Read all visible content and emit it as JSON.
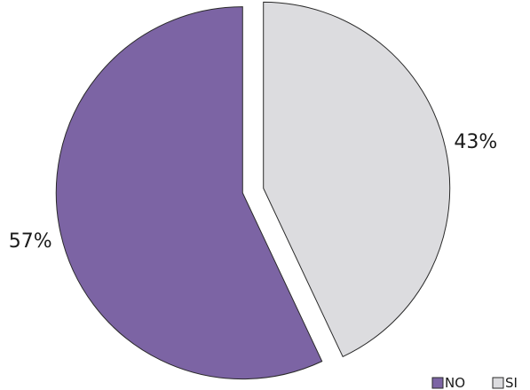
{
  "chart_data": {
    "type": "pie",
    "categories": [
      "NO",
      "SI"
    ],
    "values": [
      57,
      43
    ],
    "value_labels": [
      "57%",
      "43%"
    ],
    "colors": [
      "#7c64a4",
      "#dcdcdf"
    ],
    "legend_position": "bottom-right",
    "exploded": true
  }
}
